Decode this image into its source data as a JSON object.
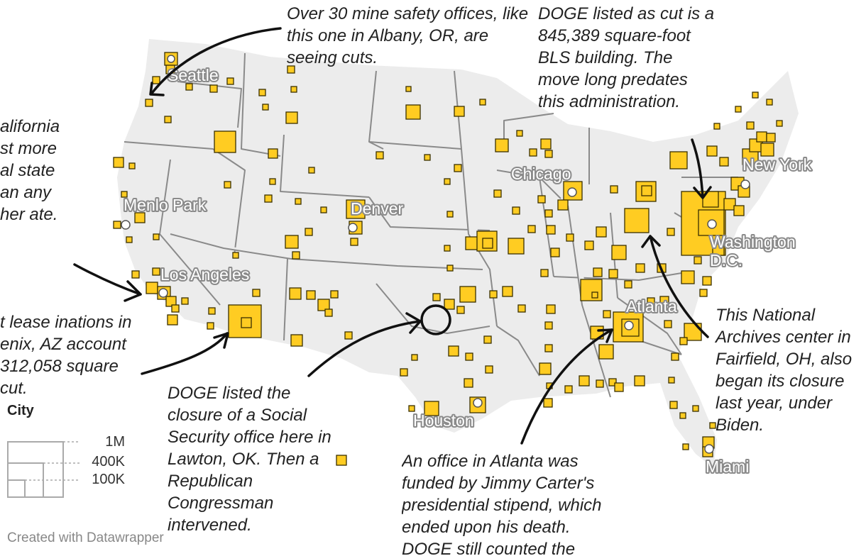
{
  "map": {
    "cities": [
      {
        "name": "Seattle"
      },
      {
        "name": "Menlo Park"
      },
      {
        "name": "Los Angeles"
      },
      {
        "name": "Denver"
      },
      {
        "name": "Chicago"
      },
      {
        "name": "New York"
      },
      {
        "name": "Washington D.C."
      },
      {
        "name": "Atlanta"
      },
      {
        "name": "Houston"
      },
      {
        "name": "Miami"
      }
    ],
    "marker_color": "#ffcc22",
    "marker_stroke": "#3a3000",
    "land_color": "#ececec",
    "border_color": "#8a8a8a"
  },
  "annotations": {
    "mine_safety": "Over 30 mine safety offices, like this one in Albany, OR, are seeing cuts.",
    "bls_building": "DOGE listed as cut is a 845,389 square-foot BLS building. The move long predates this administration.",
    "california": "alifornia st more al state an any her ate.",
    "phoenix": "t lease inations in enix, AZ account 312,058 square cut.",
    "lawton": "DOGE listed the closure of a Social Security office here in Lawton, OK. Then a Republican Congressman intervened.",
    "atlanta_office": "An office in Atlanta was funded by Jimmy Carter's presidential stipend, which ended upon his death. DOGE still counted the",
    "fairfield": "This National Archives center in Fairfield, OH, also began its closure last year, under Biden."
  },
  "legend": {
    "title": "City",
    "items": [
      {
        "label": "1M"
      },
      {
        "label": "400K"
      },
      {
        "label": "100K"
      }
    ]
  },
  "credit": "Created with Datawrapper"
}
